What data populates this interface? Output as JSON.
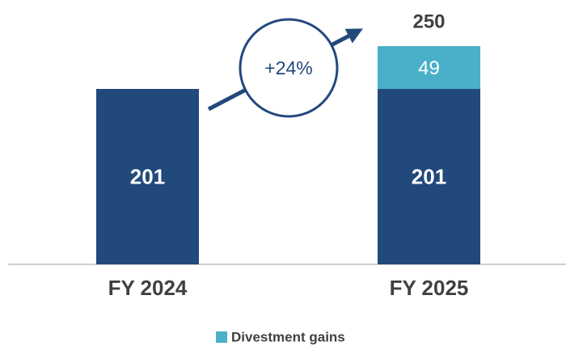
{
  "chart_data": {
    "type": "stacked_bar",
    "categories": [
      "FY 2024",
      "FY 2025"
    ],
    "series": [
      {
        "color": "#22497c",
        "values": [
          201,
          201
        ]
      },
      {
        "name": "Divestment gains",
        "color": "#4aafc9",
        "values": [
          null,
          49
        ]
      }
    ],
    "totals": [
      null,
      250
    ],
    "annotation": "+24%",
    "legend": "bottom"
  }
}
